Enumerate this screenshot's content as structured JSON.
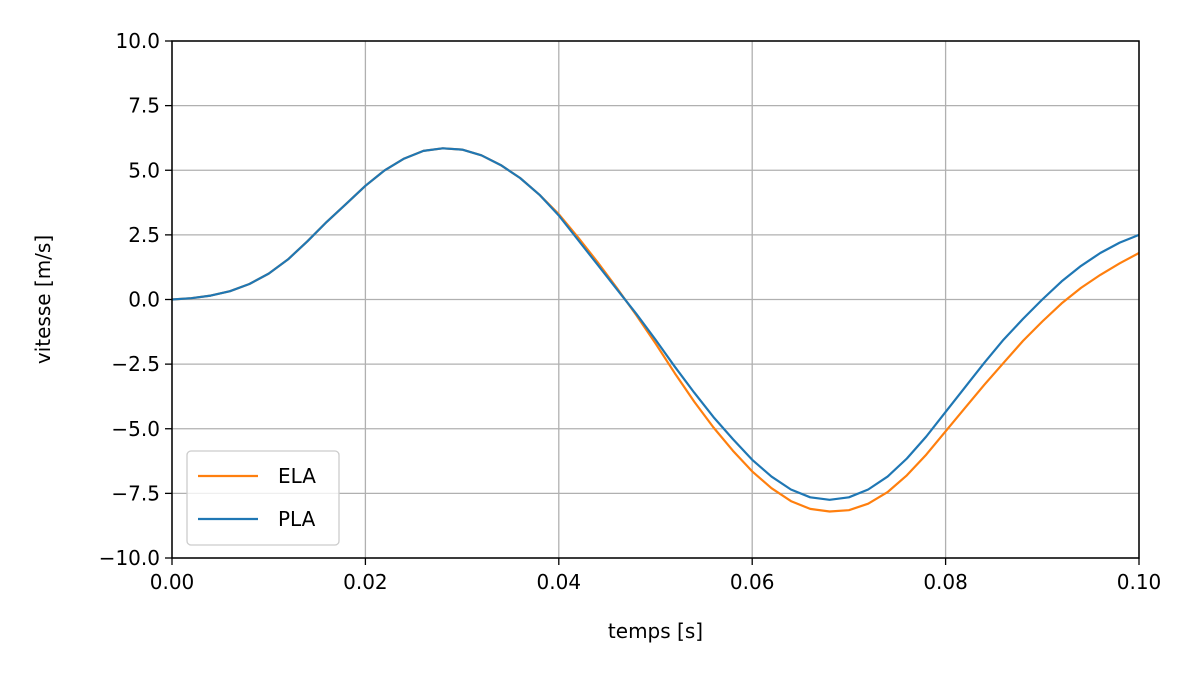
{
  "chart_data": {
    "type": "line",
    "xlabel": "temps [s]",
    "ylabel": "vitesse [m/s]",
    "xlim": [
      0.0,
      0.1
    ],
    "ylim": [
      -10.0,
      10.0
    ],
    "xticks": [
      "0.00",
      "0.02",
      "0.04",
      "0.06",
      "0.08",
      "0.10"
    ],
    "yticks": [
      "−10.0",
      "−7.5",
      "−5.0",
      "−2.5",
      "0.0",
      "2.5",
      "5.0",
      "7.5",
      "10.0"
    ],
    "grid": true,
    "legend_position": "lower-left",
    "x": [
      0.0,
      0.002,
      0.004,
      0.006,
      0.008,
      0.01,
      0.012,
      0.014,
      0.016,
      0.018,
      0.02,
      0.022,
      0.024,
      0.026,
      0.028,
      0.03,
      0.032,
      0.034,
      0.036,
      0.038,
      0.04,
      0.042,
      0.044,
      0.046,
      0.048,
      0.05,
      0.052,
      0.054,
      0.056,
      0.058,
      0.06,
      0.062,
      0.064,
      0.066,
      0.068,
      0.07,
      0.072,
      0.074,
      0.076,
      0.078,
      0.08,
      0.082,
      0.084,
      0.086,
      0.088,
      0.09,
      0.092,
      0.094,
      0.096,
      0.098,
      0.1
    ],
    "series": [
      {
        "name": "ELA",
        "color": "#ff7f0e",
        "values": [
          0.0,
          0.05,
          0.15,
          0.32,
          0.6,
          1.0,
          1.55,
          2.25,
          3.0,
          3.7,
          4.4,
          5.0,
          5.45,
          5.75,
          5.85,
          5.8,
          5.58,
          5.2,
          4.7,
          4.05,
          3.3,
          2.4,
          1.45,
          0.45,
          -0.6,
          -1.7,
          -2.85,
          -3.95,
          -4.95,
          -5.85,
          -6.65,
          -7.3,
          -7.8,
          -8.1,
          -8.2,
          -8.15,
          -7.9,
          -7.45,
          -6.8,
          -6.0,
          -5.1,
          -4.2,
          -3.3,
          -2.45,
          -1.6,
          -0.85,
          -0.15,
          0.45,
          0.95,
          1.4,
          1.8
        ]
      },
      {
        "name": "PLA",
        "color": "#1f77b4",
        "values": [
          0.0,
          0.05,
          0.15,
          0.32,
          0.6,
          1.0,
          1.55,
          2.25,
          3.0,
          3.7,
          4.4,
          5.0,
          5.45,
          5.75,
          5.85,
          5.8,
          5.58,
          5.2,
          4.7,
          4.05,
          3.25,
          2.3,
          1.35,
          0.4,
          -0.55,
          -1.55,
          -2.6,
          -3.6,
          -4.55,
          -5.4,
          -6.2,
          -6.85,
          -7.35,
          -7.65,
          -7.75,
          -7.65,
          -7.35,
          -6.85,
          -6.15,
          -5.3,
          -4.35,
          -3.4,
          -2.45,
          -1.55,
          -0.75,
          0.0,
          0.7,
          1.3,
          1.8,
          2.2,
          2.5
        ]
      }
    ]
  }
}
